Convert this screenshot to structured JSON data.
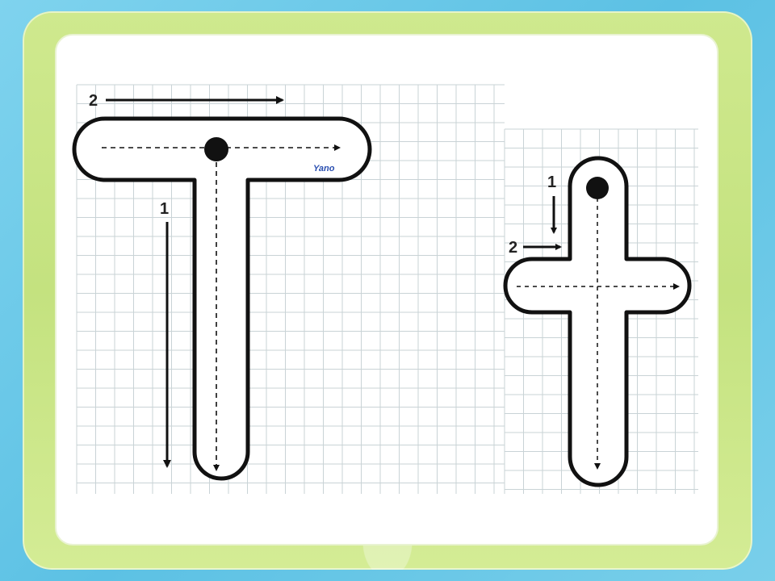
{
  "worksheet": {
    "uppercase": {
      "letter_name": "T",
      "stroke_1_number": "1",
      "stroke_2_number": "2"
    },
    "lowercase": {
      "letter_name": "t",
      "stroke_1_number": "1",
      "stroke_2_number": "2"
    },
    "watermark": "Yano"
  },
  "colors": {
    "outer_border": "#62c6e6",
    "inner_border": "#c8e484",
    "paper": "#ffffff",
    "grid": "#c9d3d6",
    "ink": "#111111",
    "watermark": "#2a4fb0"
  }
}
